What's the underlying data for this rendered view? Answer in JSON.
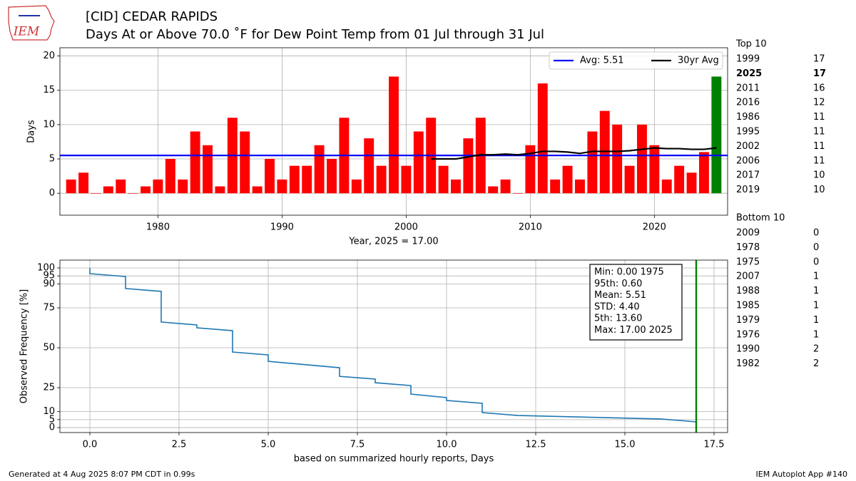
{
  "header": {
    "logo": "IEM",
    "title": "[CID] CEDAR RAPIDS",
    "subtitle": "Days At or Above 70.0 ˚F for Dew Point Temp from 01 Jul through 31 Jul"
  },
  "footer": {
    "left": "Generated at 4 Aug 2025 8:07 PM CDT in 0.99s",
    "right": "IEM Autoplot App #140"
  },
  "top10": {
    "title": "Top 10",
    "rows": [
      {
        "year": "1999",
        "value": "17"
      },
      {
        "year": "2025",
        "value": "17",
        "bold": true
      },
      {
        "year": "2011",
        "value": "16"
      },
      {
        "year": "2016",
        "value": "12"
      },
      {
        "year": "1986",
        "value": "11"
      },
      {
        "year": "1995",
        "value": "11"
      },
      {
        "year": "2002",
        "value": "11"
      },
      {
        "year": "2006",
        "value": "11"
      },
      {
        "year": "2017",
        "value": "10"
      },
      {
        "year": "2019",
        "value": "10"
      }
    ]
  },
  "bottom10": {
    "title": "Bottom 10",
    "rows": [
      {
        "year": "2009",
        "value": "0"
      },
      {
        "year": "1978",
        "value": "0"
      },
      {
        "year": "1975",
        "value": "0"
      },
      {
        "year": "2007",
        "value": "1"
      },
      {
        "year": "1988",
        "value": "1"
      },
      {
        "year": "1985",
        "value": "1"
      },
      {
        "year": "1979",
        "value": "1"
      },
      {
        "year": "1976",
        "value": "1"
      },
      {
        "year": "1990",
        "value": "2"
      },
      {
        "year": "1982",
        "value": "2"
      }
    ]
  },
  "chart_data": [
    {
      "type": "bar",
      "x_label": "Year, 2025 = 17.00",
      "y_label": "Days",
      "x": [
        1973,
        1974,
        1975,
        1976,
        1977,
        1978,
        1979,
        1980,
        1981,
        1982,
        1983,
        1984,
        1985,
        1986,
        1987,
        1988,
        1989,
        1990,
        1991,
        1992,
        1993,
        1994,
        1995,
        1996,
        1997,
        1998,
        1999,
        2000,
        2001,
        2002,
        2003,
        2004,
        2005,
        2006,
        2007,
        2008,
        2009,
        2010,
        2011,
        2012,
        2013,
        2014,
        2015,
        2016,
        2017,
        2018,
        2019,
        2020,
        2021,
        2022,
        2023,
        2024,
        2025
      ],
      "values": [
        2,
        3,
        0,
        1,
        2,
        0,
        1,
        2,
        5,
        2,
        9,
        7,
        1,
        11,
        9,
        1,
        5,
        2,
        4,
        4,
        7,
        5,
        11,
        2,
        8,
        4,
        17,
        4,
        9,
        11,
        4,
        2,
        8,
        11,
        1,
        2,
        0,
        7,
        16,
        2,
        4,
        2,
        9,
        12,
        10,
        4,
        10,
        7,
        2,
        4,
        3,
        6,
        17
      ],
      "colors": [
        "red",
        "red",
        "red",
        "red",
        "red",
        "red",
        "red",
        "red",
        "red",
        "red",
        "red",
        "red",
        "red",
        "red",
        "red",
        "red",
        "red",
        "red",
        "red",
        "red",
        "red",
        "red",
        "red",
        "red",
        "red",
        "red",
        "red",
        "red",
        "red",
        "red",
        "red",
        "red",
        "red",
        "red",
        "red",
        "red",
        "red",
        "red",
        "red",
        "red",
        "red",
        "red",
        "red",
        "red",
        "red",
        "red",
        "red",
        "red",
        "red",
        "red",
        "red",
        "red",
        "green"
      ],
      "xlim": [
        1972.1,
        2025.9
      ],
      "ylim": [
        -3.2,
        21.2
      ],
      "xticks": [
        1980,
        1990,
        2000,
        2010,
        2020
      ],
      "yticks": [
        0,
        5,
        10,
        15,
        20
      ],
      "grid": true,
      "legend": "upper right",
      "lines": [
        {
          "name": "Avg: 5.51",
          "color": "blue",
          "y": 5.51
        },
        {
          "name": "30yr Avg",
          "color": "black",
          "x": [
            2002,
            2003,
            2004,
            2005,
            2006,
            2007,
            2008,
            2009,
            2010,
            2011,
            2012,
            2013,
            2014,
            2015,
            2016,
            2017,
            2018,
            2019,
            2020,
            2021,
            2022,
            2023,
            2024,
            2025
          ],
          "values": [
            5.0,
            5.0,
            5.0,
            5.3,
            5.6,
            5.6,
            5.7,
            5.6,
            5.8,
            6.1,
            6.1,
            6.0,
            5.8,
            6.1,
            6.1,
            6.1,
            6.2,
            6.4,
            6.6,
            6.5,
            6.5,
            6.4,
            6.4,
            6.6
          ]
        }
      ]
    },
    {
      "type": "line",
      "x_label": "based on summarized hourly reports, Days",
      "y_label": "Observed Frequency [%]",
      "color": "#1f77b4",
      "x": [
        0,
        0,
        1,
        1,
        2,
        2,
        3,
        3,
        4,
        4,
        5,
        5,
        7,
        7,
        8,
        8,
        9,
        9,
        10,
        10,
        11,
        11,
        12,
        16,
        17
      ],
      "values": [
        100,
        96.4,
        94.6,
        87.1,
        85.3,
        66.1,
        64.3,
        62.5,
        60.7,
        47.3,
        45.5,
        41.5,
        37.5,
        32.1,
        30.4,
        28.1,
        26.3,
        21.0,
        18.8,
        17.0,
        15.2,
        9.4,
        7.6,
        5.4,
        3.6
      ],
      "xlim": [
        -0.84,
        17.88
      ],
      "ylim": [
        -3.1,
        104.9
      ],
      "xticks": [
        {
          "value": 0,
          "label": "0.0"
        },
        2.5,
        {
          "value": 5,
          "label": "5.0"
        },
        7.5,
        {
          "value": 10,
          "label": "10.0"
        },
        12.5,
        {
          "value": 15,
          "label": "15.0"
        },
        17.5
      ],
      "yticks": [
        0,
        5,
        10,
        25,
        50,
        75,
        90,
        95,
        100
      ],
      "grid": true,
      "vline": {
        "x": 17,
        "color": "green"
      },
      "stats": [
        "Min: 0.00 1975",
        "95th: 0.60",
        "Mean: 5.51",
        "STD: 4.40",
        "5th: 13.60",
        "Max: 17.00 2025"
      ]
    }
  ]
}
